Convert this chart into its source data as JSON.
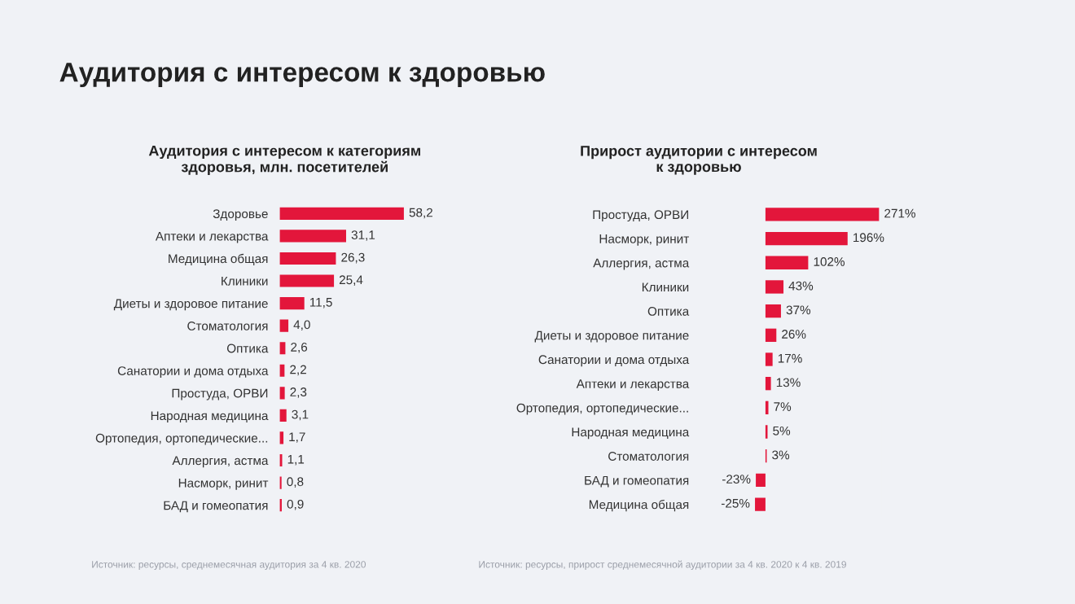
{
  "chart_data": [
    {
      "type": "bar",
      "orientation": "horizontal",
      "title": "Аудитория с интересом к здоровью",
      "subtitle": "Аудитория с интересом к категориям\nздоровья, млн. посетителей",
      "categories": [
        "Здоровье",
        "Аптеки и лекарства",
        "Медицина общая",
        "Клиники",
        "Диеты и здоровое питание",
        "Стоматология",
        "Оптика",
        "Санатории и дома отдыха",
        "Простуда, ОРВИ",
        "Народная медицина",
        "Ортопедия, ортопедические...",
        "Аллергия, астма",
        "Насморк, ринит",
        "БАД и гомеопатия"
      ],
      "values": [
        58.2,
        31.1,
        26.3,
        25.4,
        11.5,
        4.0,
        2.6,
        2.2,
        2.3,
        3.1,
        1.7,
        1.1,
        0.8,
        0.9
      ],
      "value_labels": [
        "58,2",
        "31,1",
        "26,3",
        "25,4",
        "11,5",
        "4,0",
        "2,6",
        "2,2",
        "2,3",
        "3,1",
        "1,7",
        "1,1",
        "0,8",
        "0,9"
      ],
      "color": "#e3163b",
      "annotations": [
        "Источник: ресурсы, среднемесячная аудитория за 4 кв. 2020"
      ]
    },
    {
      "type": "bar",
      "orientation": "horizontal",
      "subtitle": "Прирост аудитории с интересом\nк здоровью",
      "categories": [
        "Простуда, ОРВИ",
        "Насморк, ринит",
        "Аллергия, астма",
        "Клиники",
        "Оптика",
        "Диеты и здоровое питание",
        "Санатории и дома отдыха",
        "Аптеки и лекарства",
        "Ортопедия, ортопедические...",
        "Народная медицина",
        "Стоматология",
        "БАД и гомеопатия",
        "Медицина общая"
      ],
      "values": [
        271,
        196,
        102,
        43,
        37,
        26,
        17,
        13,
        7,
        5,
        3,
        -23,
        -25
      ],
      "value_labels": [
        "271%",
        "196%",
        "102%",
        "43%",
        "37%",
        "26%",
        "17%",
        "13%",
        "7%",
        "5%",
        "3%",
        "-23%",
        "-25%"
      ],
      "color": "#e3163b",
      "annotations": [
        "Источник: ресурсы, прирост среднемесячной аудитории за 4 кв. 2020 к 4 кв. 2019"
      ]
    }
  ]
}
